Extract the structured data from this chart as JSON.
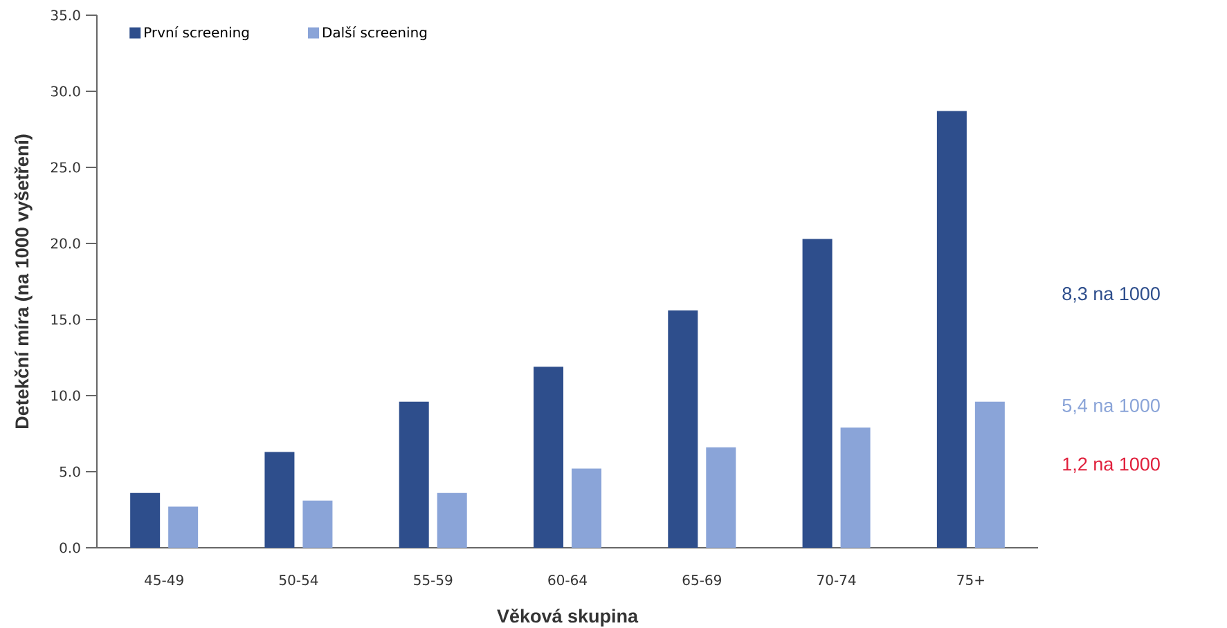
{
  "chart_data": {
    "type": "bar",
    "xlabel": "Věková skupina",
    "ylabel": "Detekční míra (na 1000 vyšetření)",
    "categories": [
      "45-49",
      "50-54",
      "55-59",
      "60-64",
      "65-69",
      "70-74",
      "75+"
    ],
    "series": [
      {
        "name": "První screening",
        "color": "#2e4e8c",
        "values": [
          3.6,
          6.3,
          9.6,
          11.9,
          15.6,
          20.3,
          28.7
        ]
      },
      {
        "name": "Další screening",
        "color": "#8aa4d8",
        "values": [
          2.7,
          3.1,
          3.6,
          5.2,
          6.6,
          7.9,
          9.6
        ]
      }
    ],
    "ylim": [
      0,
      35
    ],
    "yticks": [
      {
        "value": 0,
        "label": "0.0"
      },
      {
        "value": 5,
        "label": "5.0"
      },
      {
        "value": 10,
        "label": "10.0"
      },
      {
        "value": 15,
        "label": "15.0"
      },
      {
        "value": 20,
        "label": "20.0"
      },
      {
        "value": 25,
        "label": "25.0"
      },
      {
        "value": 30,
        "label": "30.0"
      },
      {
        "value": 35,
        "label": "35.0"
      }
    ],
    "legend": "top left",
    "annotations": [
      "8,3 na 1000",
      "5,4 na 1000",
      "1,2 na 1000"
    ]
  }
}
